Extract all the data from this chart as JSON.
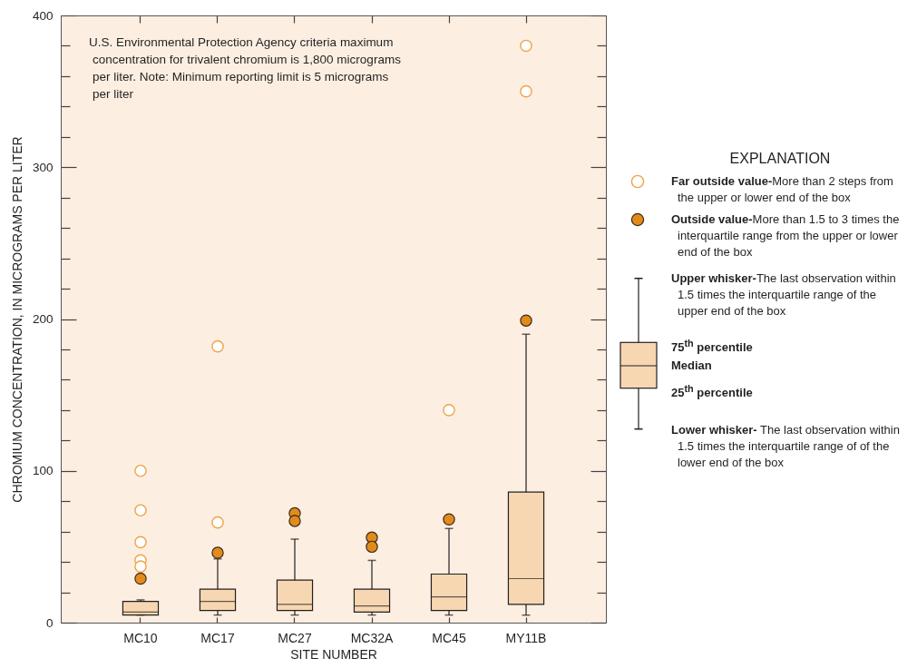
{
  "chart_data": {
    "type": "box",
    "xlabel": "SITE NUMBER",
    "ylabel": "CHROMIUM CONCENTRATION, IN MICROGRAMS PER LITER",
    "legend_title": "EXPLANATION",
    "categories": [
      "MC10",
      "MC17",
      "MC27",
      "MC32A",
      "MC45",
      "MY11B"
    ],
    "ylim": [
      0,
      400
    ],
    "yticks": [
      0,
      {
        "value": 20,
        "label": null
      },
      {
        "value": 40,
        "label": null
      },
      {
        "value": 60,
        "label": null
      },
      {
        "value": 80,
        "label": null
      },
      100,
      {
        "value": 120,
        "label": null
      },
      {
        "value": 140,
        "label": null
      },
      {
        "value": 160,
        "label": null
      },
      {
        "value": 180,
        "label": null
      },
      200,
      {
        "value": 220,
        "label": null
      },
      {
        "value": 240,
        "label": null
      },
      {
        "value": 260,
        "label": null
      },
      {
        "value": 280,
        "label": null
      },
      300,
      {
        "value": 320,
        "label": null
      },
      {
        "value": 340,
        "label": null
      },
      {
        "value": 360,
        "label": null
      },
      {
        "value": 380,
        "label": null
      },
      400
    ],
    "legend": "right",
    "marker": "circle",
    "series": [
      {
        "type": "box",
        "color": "#f7d7b2",
        "boxes": [
          {
            "low": 5,
            "q1": 5,
            "median": 7,
            "q3": 14,
            "high": 15
          },
          {
            "low": 5,
            "q1": 8,
            "median": 14,
            "q3": 22,
            "high": 42
          },
          {
            "low": 5,
            "q1": 8,
            "median": 12,
            "q3": 28,
            "high": 55
          },
          {
            "low": 5,
            "q1": 7,
            "median": 11,
            "q3": 22,
            "high": 41
          },
          {
            "low": 5,
            "q1": 8,
            "median": 17,
            "q3": 32,
            "high": 62
          },
          {
            "low": 5,
            "q1": 12,
            "median": 29,
            "q3": 86,
            "high": 190
          }
        ]
      },
      {
        "type": "scatter",
        "name": "Far outside value-More than 2 steps from the upper or lower end of the box",
        "color": "#f0a247",
        "x": [
          "MC10",
          "MC10",
          "MC10",
          "MC10",
          "MC10",
          "MC17",
          "MC17",
          "MC45",
          "MY11B",
          "MY11B"
        ],
        "values": [
          100,
          74,
          53,
          41,
          37,
          182,
          66,
          140,
          380,
          350
        ]
      },
      {
        "type": "scatter",
        "name": "Outside value-More than 1.5 to 3 times the interquartile range from the upper or lower end of the box",
        "color": "#e38b1a",
        "x": [
          "MC10",
          "MC17",
          "MC27",
          "MC27",
          "MC32A",
          "MC32A",
          "MC45",
          "MY11B"
        ],
        "values": [
          29,
          46,
          72,
          67,
          56,
          50,
          68,
          199
        ]
      }
    ],
    "annotations": [
      "U.S. Environmental Protection Agency criteria maximum concentration for trivalent chromium is 1,800 micrograms per liter. Note: Minimum reporting limit is 5 micrograms per liter",
      "Upper whisker-The last observation within 1.5 times the interquartile range of the upper end of the box",
      "75$^{th}$ percentile",
      "Median",
      "25$^{th}$ percentile",
      "Lower whisker- The last observation within 1.5 times the interquartile range of of the lower end of the box"
    ]
  }
}
